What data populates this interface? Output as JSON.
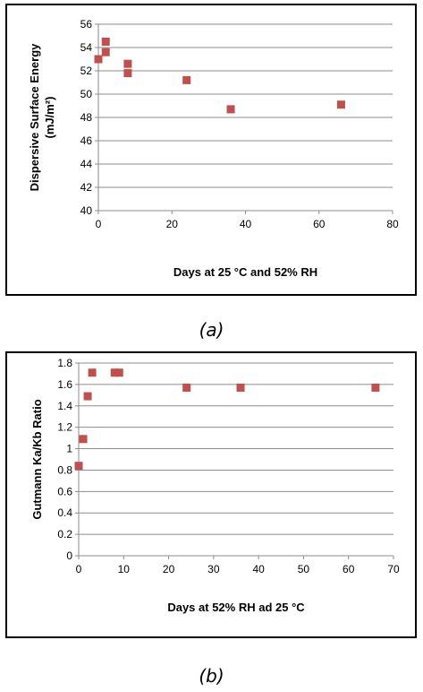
{
  "chart_data": [
    {
      "type": "scatter",
      "panel_label": "(a)",
      "xlabel": "Days at 25 °C and 52% RH",
      "ylabel_line1": "Dispersive Surface Energy",
      "ylabel_line2": "(mJ/m²)",
      "xlim": [
        0,
        80
      ],
      "ylim": [
        40,
        56
      ],
      "xticks": [
        0,
        20,
        40,
        60,
        80
      ],
      "yticks": [
        40,
        42,
        44,
        46,
        48,
        50,
        52,
        54,
        56
      ],
      "grid": "horizontal",
      "marker_color": "#c0504d",
      "points": [
        {
          "x": 0,
          "y": 53.0
        },
        {
          "x": 2,
          "y": 54.5
        },
        {
          "x": 2,
          "y": 53.6
        },
        {
          "x": 8,
          "y": 52.6
        },
        {
          "x": 8,
          "y": 51.8
        },
        {
          "x": 24,
          "y": 51.2
        },
        {
          "x": 36,
          "y": 48.7
        },
        {
          "x": 66,
          "y": 49.1
        }
      ]
    },
    {
      "type": "scatter",
      "panel_label": "(b)",
      "xlabel": "Days at 52% RH ad 25 °C",
      "ylabel": "Gutmann Ka/Kb Ratio",
      "xlim": [
        0,
        70
      ],
      "ylim": [
        0,
        1.8
      ],
      "xticks": [
        0,
        10,
        20,
        30,
        40,
        50,
        60,
        70
      ],
      "yticks": [
        0,
        0.2,
        0.4,
        0.6,
        0.8,
        1,
        1.2,
        1.4,
        1.6,
        1.8
      ],
      "grid": "horizontal",
      "marker_color": "#c0504d",
      "points": [
        {
          "x": 0,
          "y": 0.84
        },
        {
          "x": 1,
          "y": 1.09
        },
        {
          "x": 2,
          "y": 1.49
        },
        {
          "x": 3,
          "y": 1.71
        },
        {
          "x": 8,
          "y": 1.71
        },
        {
          "x": 9,
          "y": 1.71
        },
        {
          "x": 24,
          "y": 1.57
        },
        {
          "x": 36,
          "y": 1.57
        },
        {
          "x": 66,
          "y": 1.57
        }
      ]
    }
  ]
}
